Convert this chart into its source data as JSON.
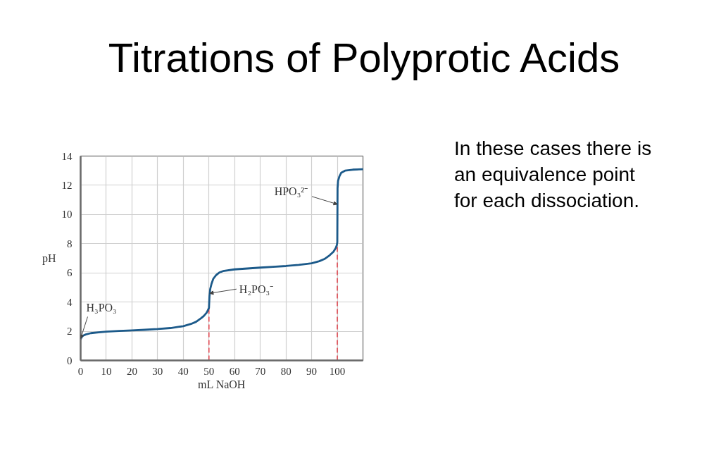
{
  "chart_data": {
    "type": "line",
    "title": "Titrations of Polyprotic Acids",
    "xlabel": "mL NaOH",
    "ylabel": "pH",
    "x": [
      0,
      0.5,
      1,
      2,
      4,
      7,
      10,
      15,
      20,
      25,
      30,
      35,
      40,
      43,
      45,
      47,
      48,
      49,
      49.5,
      50,
      50.2,
      50.5,
      51,
      51.7,
      52.8,
      54,
      55.5,
      60,
      65,
      70,
      75,
      80,
      85,
      90,
      93,
      95,
      97,
      98.5,
      99.4,
      99.8,
      100,
      100.1,
      100.3,
      100.8,
      101.5,
      103,
      106,
      110
    ],
    "series": [
      {
        "color": "#1c5a8a",
        "values": [
          1.45,
          1.62,
          1.7,
          1.78,
          1.87,
          1.93,
          1.97,
          2.02,
          2.06,
          2.1,
          2.15,
          2.22,
          2.35,
          2.5,
          2.65,
          2.9,
          3.05,
          3.25,
          3.4,
          3.6,
          4.4,
          4.9,
          5.25,
          5.6,
          5.85,
          6.02,
          6.12,
          6.24,
          6.3,
          6.36,
          6.41,
          6.47,
          6.55,
          6.66,
          6.8,
          6.95,
          7.2,
          7.45,
          7.7,
          7.9,
          8.1,
          11.8,
          12.3,
          12.6,
          12.85,
          13.0,
          13.07,
          13.1
        ]
      }
    ],
    "xlim": [
      0,
      110
    ],
    "xticks": [
      0,
      10,
      20,
      30,
      40,
      50,
      60,
      70,
      80,
      90,
      100
    ],
    "ylim": [
      0,
      14
    ],
    "yticks": [
      0,
      2,
      4,
      6,
      8,
      10,
      12,
      14
    ],
    "grid": true,
    "ref_lines": [
      {
        "axis": "x",
        "value": 50,
        "color": "#e0404a",
        "line_style": "dashed"
      },
      {
        "axis": "x",
        "value": 100,
        "color": "#e0404a",
        "line_style": "dashed"
      }
    ],
    "annotations": [
      {
        "text": "H₃PO₃",
        "x": 0,
        "y": 1.5
      },
      {
        "text": "H₂PO₃⁻",
        "x": 50.3,
        "y": 4.6
      },
      {
        "text": "HPO₃²⁻",
        "x": 100,
        "y": 10.7
      },
      "In these cases there is an equivalence point for each dissociation."
    ]
  }
}
